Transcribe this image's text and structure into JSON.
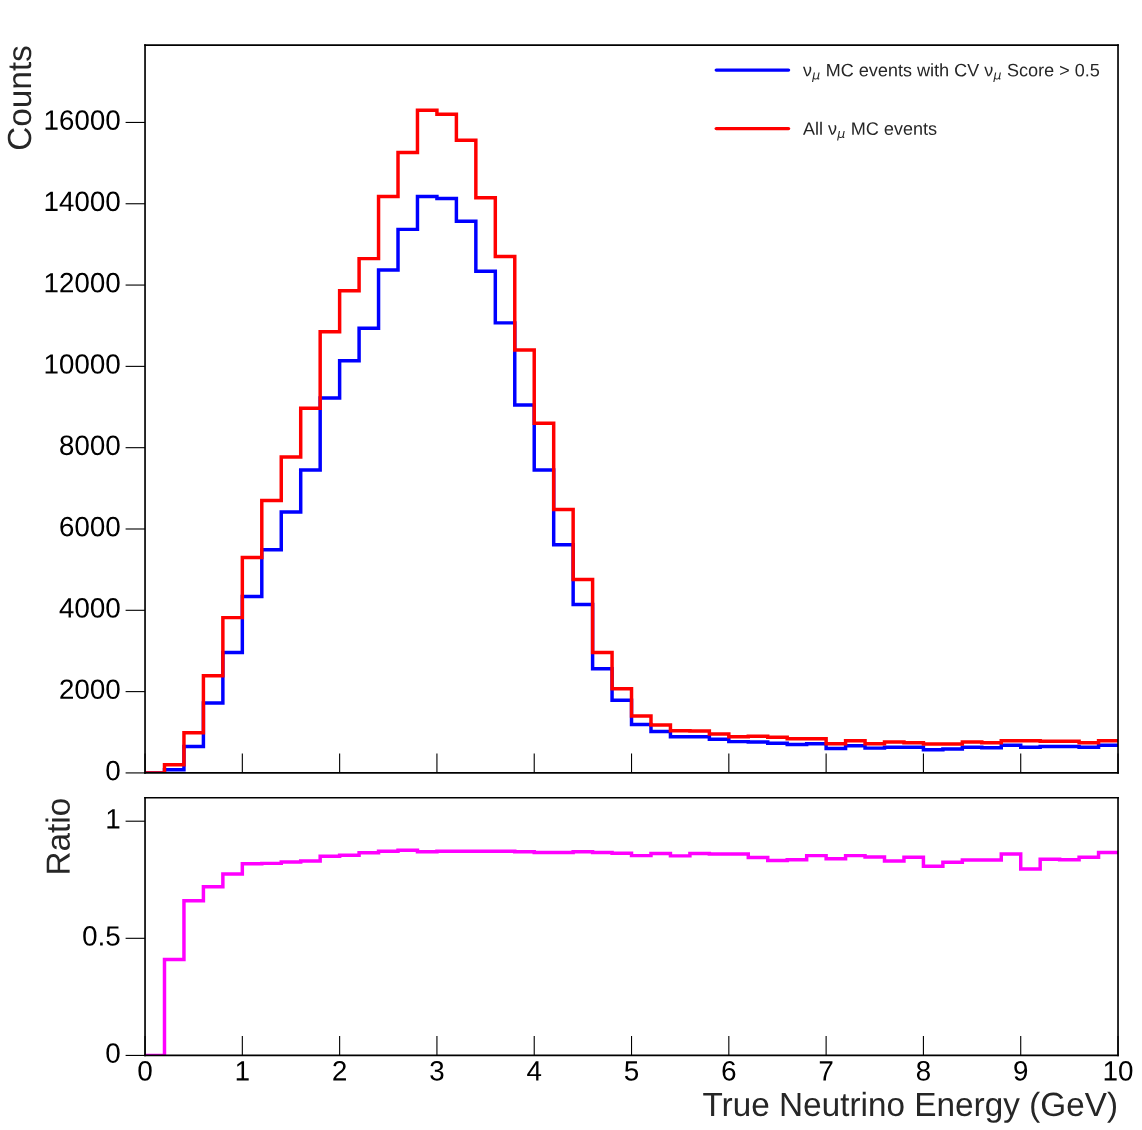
{
  "chart_data": [
    {
      "type": "histogram",
      "ylabel": "Counts",
      "legend": "top right",
      "tick_labels": "y",
      "bins": [
        0,
        0.2,
        0.4,
        0.6,
        0.8,
        1,
        1.2,
        1.4,
        1.6,
        1.8,
        2,
        2.2,
        2.4,
        2.6,
        2.8,
        3,
        3.2,
        3.4,
        3.6,
        3.8,
        4,
        4.2,
        4.4,
        4.6,
        4.8,
        5,
        5.2,
        5.4,
        5.6,
        5.8,
        6,
        6.2,
        6.4,
        6.6,
        6.8,
        7,
        7.2,
        7.4,
        7.6,
        7.8,
        8,
        8.2,
        8.4,
        8.6,
        8.8,
        9,
        9.2,
        9.4,
        9.6,
        9.8,
        10
      ],
      "series": [
        {
          "name": "ν$_{μ}$ MC events with CV ν$_{μ}$ Score > 0.5",
          "color": "#0000ff",
          "values": [
            0,
            80,
            650,
            1720,
            2960,
            4340,
            5490,
            6420,
            7450,
            9220,
            10140,
            10940,
            12370,
            13370,
            14180,
            14130,
            13570,
            12340,
            11070,
            9050,
            7450,
            5610,
            4140,
            2560,
            1790,
            1190,
            1020,
            890,
            890,
            830,
            770,
            760,
            730,
            700,
            720,
            600,
            670,
            610,
            630,
            630,
            570,
            590,
            630,
            620,
            680,
            630,
            650,
            650,
            630,
            680
          ]
        },
        {
          "name": "All ν$_{μ}$ MC events",
          "color": "#ff0000",
          "values": [
            0,
            200,
            990,
            2390,
            3820,
            5300,
            6700,
            7770,
            8970,
            10850,
            11860,
            12650,
            14180,
            15260,
            16300,
            16200,
            15560,
            14150,
            12700,
            10400,
            8600,
            6480,
            4760,
            2960,
            2070,
            1400,
            1180,
            1040,
            1030,
            960,
            890,
            900,
            880,
            840,
            840,
            720,
            790,
            720,
            760,
            740,
            710,
            710,
            760,
            740,
            790,
            790,
            780,
            780,
            740,
            790
          ]
        }
      ],
      "xlim": [
        0,
        10
      ],
      "xticks": [
        0,
        1,
        2,
        3,
        4,
        5,
        6,
        7,
        8,
        9,
        10
      ],
      "ylim": [
        0,
        17900
      ],
      "yticks": [
        0,
        2000,
        4000,
        6000,
        8000,
        10000,
        12000,
        14000,
        16000
      ]
    },
    {
      "type": "histogram",
      "ylabel": "Ratio",
      "xlabel": "True Neutrino Energy (GeV)",
      "bins": [
        0,
        0.2,
        0.4,
        0.6,
        0.8,
        1,
        1.2,
        1.4,
        1.6,
        1.8,
        2,
        2.2,
        2.4,
        2.6,
        2.8,
        3,
        3.2,
        3.4,
        3.6,
        3.8,
        4,
        4.2,
        4.4,
        4.6,
        4.8,
        5,
        5.2,
        5.4,
        5.6,
        5.8,
        6,
        6.2,
        6.4,
        6.6,
        6.8,
        7,
        7.2,
        7.4,
        7.6,
        7.8,
        8,
        8.2,
        8.4,
        8.6,
        8.8,
        9,
        9.2,
        9.4,
        9.6,
        9.8,
        10
      ],
      "series": [
        {
          "color": "#ff00ff",
          "values": [
            0,
            0.41,
            0.66,
            0.72,
            0.775,
            0.818,
            0.82,
            0.826,
            0.83,
            0.85,
            0.855,
            0.865,
            0.872,
            0.876,
            0.87,
            0.872,
            0.872,
            0.872,
            0.872,
            0.87,
            0.866,
            0.866,
            0.87,
            0.866,
            0.863,
            0.853,
            0.862,
            0.852,
            0.862,
            0.86,
            0.86,
            0.845,
            0.832,
            0.835,
            0.853,
            0.84,
            0.853,
            0.847,
            0.83,
            0.846,
            0.808,
            0.825,
            0.834,
            0.834,
            0.86,
            0.796,
            0.838,
            0.835,
            0.846,
            0.866
          ]
        }
      ],
      "xlim": [
        0,
        10
      ],
      "xticks": [
        0,
        1,
        2,
        3,
        4,
        5,
        6,
        7,
        8,
        9,
        10
      ],
      "ylim": [
        0,
        1.1
      ],
      "yticks": [
        0,
        0.5,
        1
      ]
    }
  ]
}
